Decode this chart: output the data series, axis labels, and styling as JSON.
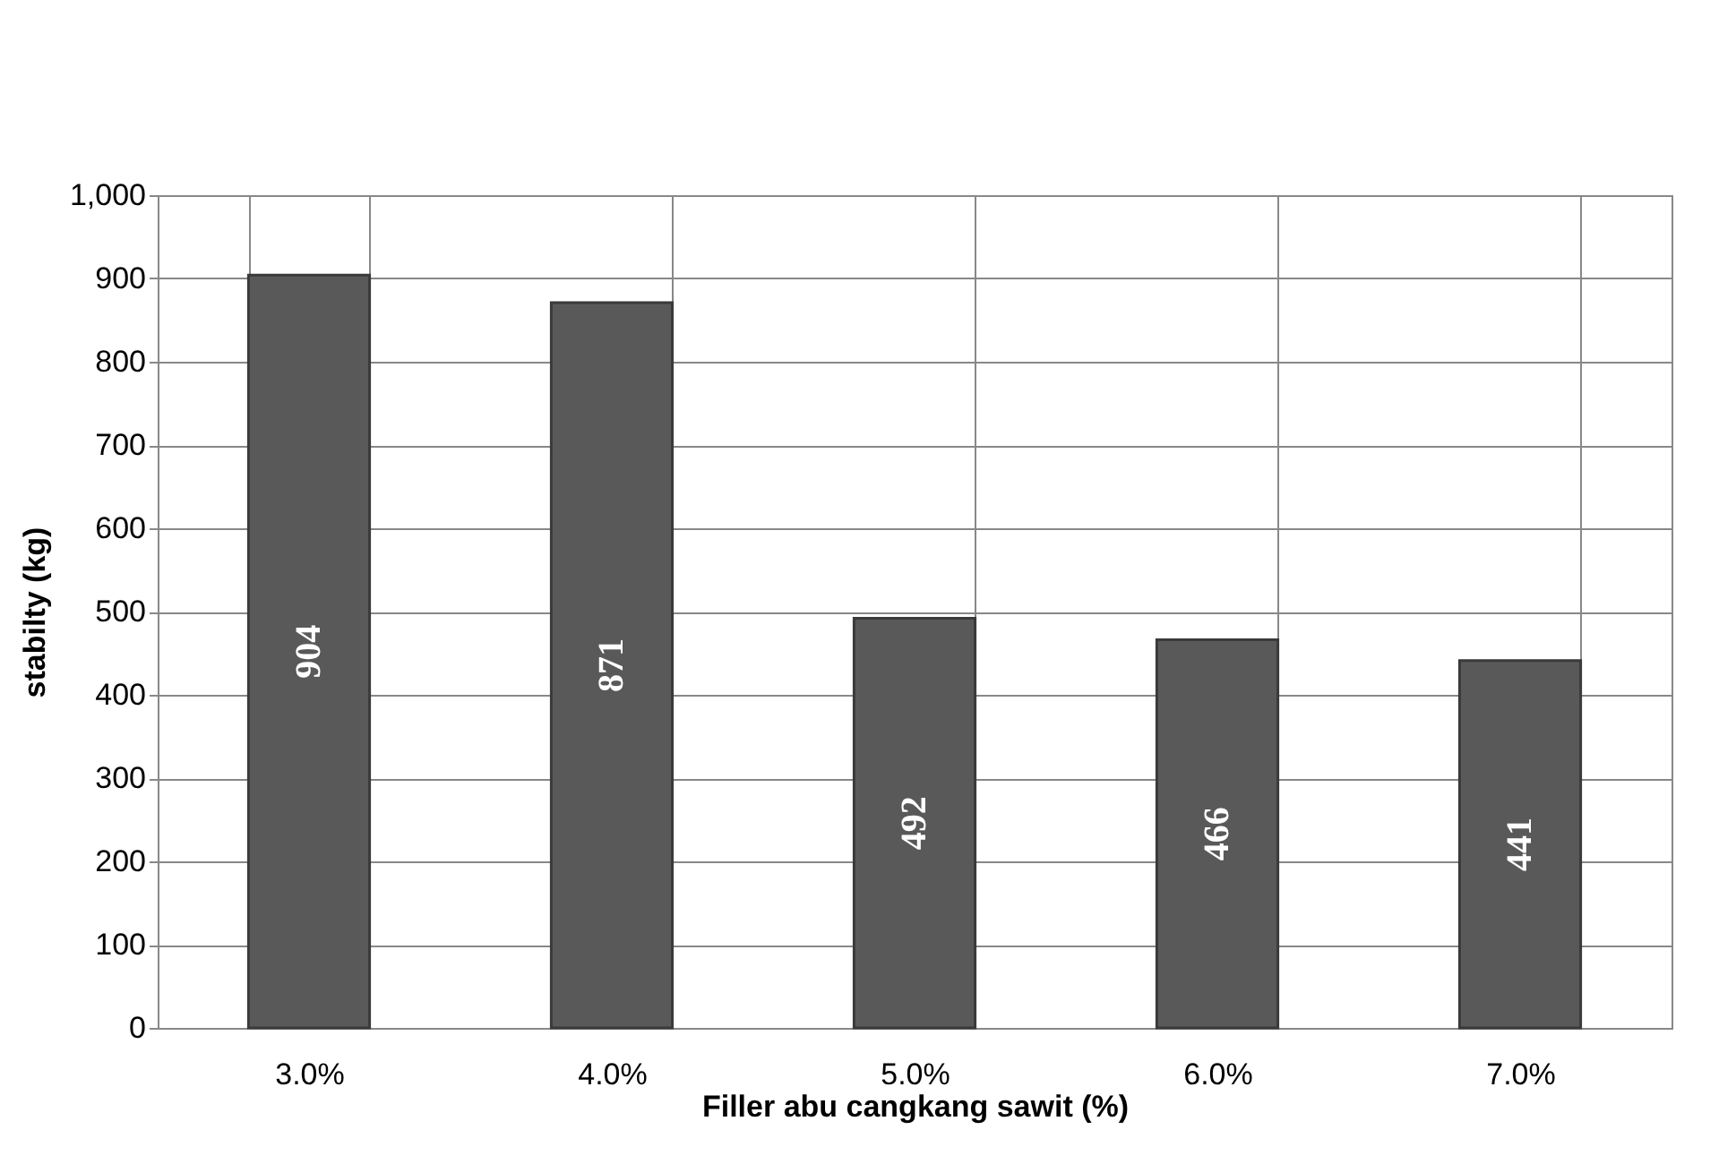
{
  "chart_data": {
    "type": "bar",
    "xlabel": "Filler abu cangkang sawit (%)",
    "ylabel": "stabilty (kg)",
    "categories": [
      "3.0%",
      "4.0%",
      "5.0%",
      "6.0%",
      "7.0%"
    ],
    "values": [
      904,
      871,
      492,
      466,
      441
    ],
    "color": "#595959",
    "ylim": [
      0,
      1000
    ],
    "yticks": [
      0,
      100,
      200,
      300,
      400,
      500,
      600,
      700,
      800,
      900,
      {
        "value": 1000,
        "label": "1,000"
      }
    ],
    "grid": true,
    "data_labels": true
  }
}
